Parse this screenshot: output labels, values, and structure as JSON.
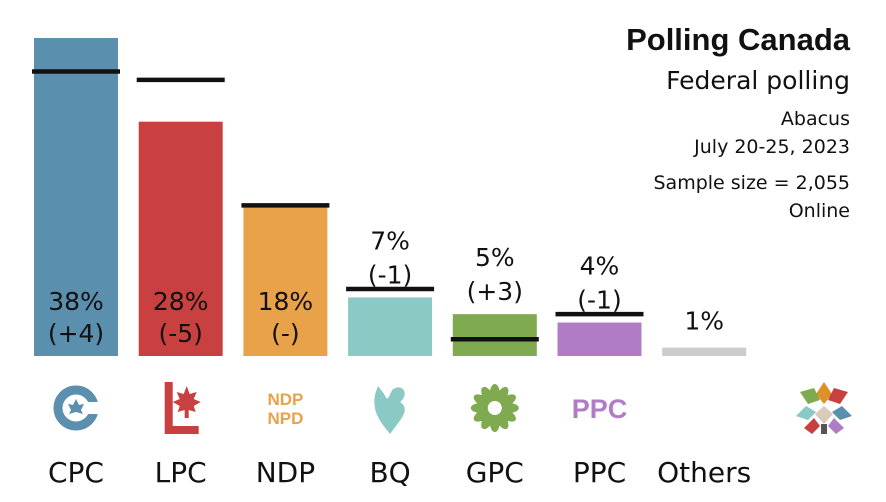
{
  "header": {
    "title": "Polling Canada",
    "subtitle": "Federal polling",
    "pollster": "Abacus",
    "dates": "July 20-25, 2023",
    "sample": "Sample size = 2,055",
    "method": "Online"
  },
  "chart_data": {
    "type": "bar",
    "title": "Polling Canada",
    "subtitle": "Federal polling",
    "categories": [
      "CPC",
      "LPC",
      "NDP",
      "BQ",
      "GPC",
      "PPC",
      "Others"
    ],
    "values": [
      38,
      28,
      18,
      7,
      5,
      4,
      1
    ],
    "previous_values": [
      34,
      33,
      18,
      8,
      2,
      5,
      null
    ],
    "value_labels": [
      "38%",
      "28%",
      "18%",
      "7%",
      "5%",
      "4%",
      "1%"
    ],
    "change_labels": [
      "(+4)",
      "(-5)",
      "(-)",
      "(-1)",
      "(+3)",
      "(-1)",
      ""
    ],
    "colors": [
      "#5a8fae",
      "#c94040",
      "#e8a24a",
      "#8ac9c4",
      "#7faa4f",
      "#b07cc6",
      "#cccccc"
    ],
    "previous_marker_color": "#111111",
    "logos": [
      "cpc-logo",
      "lpc-logo",
      "ndp-logo",
      "bq-logo",
      "gpc-logo",
      "ppc-logo",
      ""
    ],
    "logo_text": {
      "ndp": [
        "NDP",
        "NPD"
      ],
      "ppc": "PPC"
    },
    "ylim": [
      0,
      38
    ],
    "xlabel": "",
    "ylabel": "",
    "grid": false,
    "legend": "none"
  }
}
